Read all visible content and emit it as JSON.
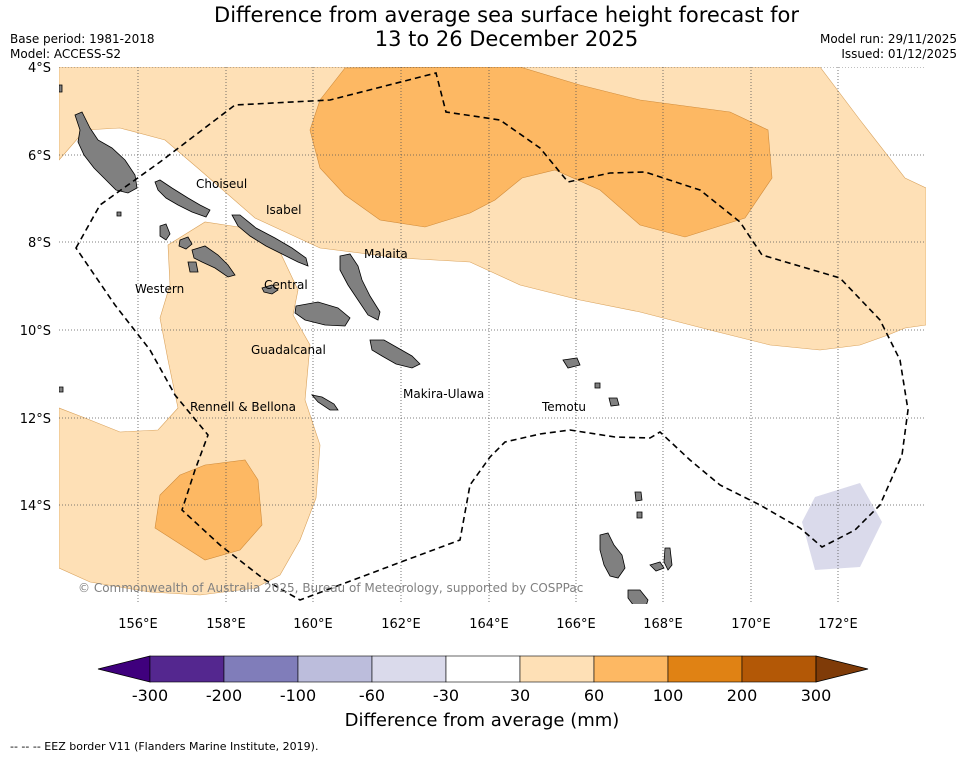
{
  "title": {
    "line1": "Difference from average sea surface height forecast for",
    "line2": "13 to 26 December 2025"
  },
  "meta": {
    "base_period": "Base period: 1981-2018",
    "model": "Model: ACCESS-S2",
    "model_run": "Model run: 29/11/2025",
    "issued": "Issued: 01/12/2025"
  },
  "map": {
    "lat_labels": [
      "4°S",
      "6°S",
      "8°S",
      "10°S",
      "12°S",
      "14°S"
    ],
    "lon_labels": [
      "156°E",
      "158°E",
      "160°E",
      "162°E",
      "164°E",
      "166°E",
      "168°E",
      "170°E",
      "172°E"
    ],
    "provinces": [
      "Choiseul",
      "Isabel",
      "Malaita",
      "Western",
      "Central",
      "Guadalcanal",
      "Rennell & Bellona",
      "Makira-Ulawa",
      "Temotu"
    ],
    "copyright": "© Commonwealth of Australia 2025, Bureau of Meteorology, supported by COSPPac",
    "land_color": "#808080"
  },
  "colorbar": {
    "title": "Difference from average (mm)",
    "ticks": [
      "-300",
      "-200",
      "-100",
      "-60",
      "-30",
      "30",
      "60",
      "100",
      "200",
      "300"
    ],
    "colors": [
      "#3f007d",
      "#54278f",
      "#807dba",
      "#bcbddc",
      "#dadaeb",
      "#ffffff",
      "#fee0b6",
      "#fdb863",
      "#e08214",
      "#b35806",
      "#7f3b08"
    ]
  },
  "legend_note": "--  --  -- EEZ border V11 (Flanders Marine Institute, 2019)."
}
